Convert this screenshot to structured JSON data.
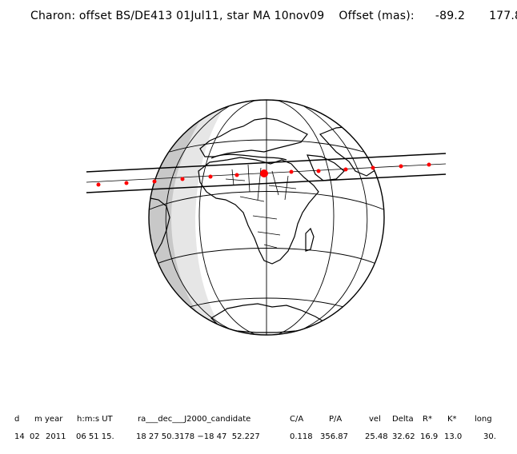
{
  "title": {
    "label": "Charon: offset BS/DE413 01Jul11, star MA 10nov09",
    "offset_label": "Offset (mas):",
    "offset_x": "-89.2",
    "offset_y": "177.8"
  },
  "columns": [
    {
      "header": "d",
      "value": "14"
    },
    {
      "header": "m",
      "value": "02"
    },
    {
      "header": "year",
      "value": "2011"
    },
    {
      "header": "h:m:s UT",
      "value": "06 51 15."
    },
    {
      "header": "ra___dec___J2000_candidate",
      "value": "18 27 50.3178 −18 47  52.227"
    },
    {
      "header": "C/A",
      "value": "0.118"
    },
    {
      "header": "P/A",
      "value": "356.87"
    },
    {
      "header": "vel",
      "value": "25.48"
    },
    {
      "header": "Delta",
      "value": "32.62"
    },
    {
      "header": "R*",
      "value": "16.9"
    },
    {
      "header": "K*",
      "value": "13.0"
    },
    {
      "header": "long",
      "value": "30."
    }
  ],
  "colors": {
    "ink": "#000000",
    "twilight": "#c8c8c8",
    "night": "#e6e6e6",
    "event": "#ff0000"
  },
  "globe": {
    "center_lon": 30,
    "center_lat": 10
  },
  "track": {
    "dot_count": 13,
    "center_dot": "closest approach"
  }
}
